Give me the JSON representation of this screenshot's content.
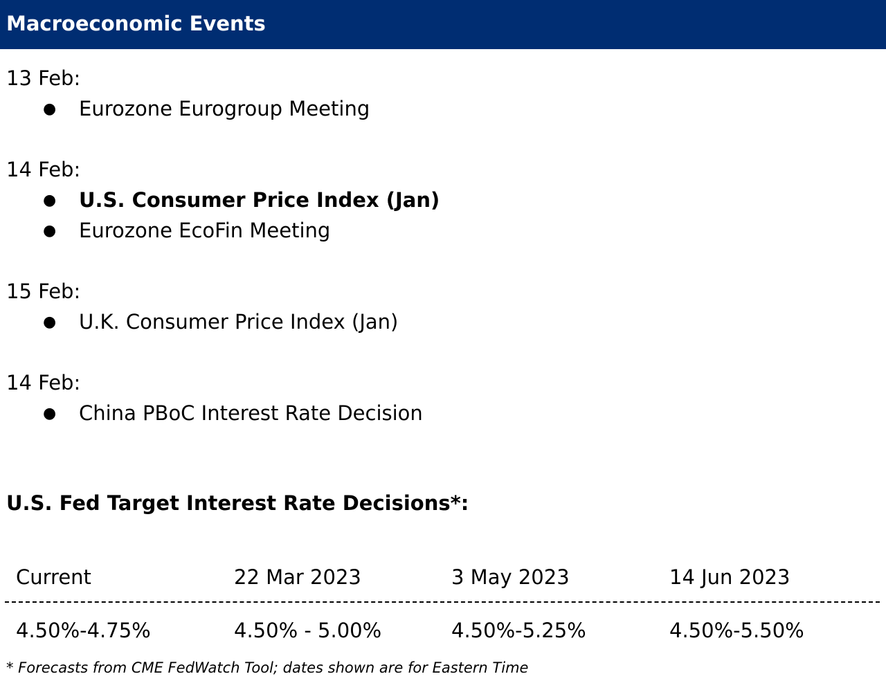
{
  "header": {
    "title": "Macroeconomic Events",
    "background_color": "#002d72"
  },
  "event_groups": [
    {
      "date": "13 Feb:",
      "events": [
        {
          "text": "Eurozone Eurogroup Meeting",
          "bold": false
        }
      ]
    },
    {
      "date": "14 Feb:",
      "events": [
        {
          "text": "U.S. Consumer Price Index (Jan)",
          "bold": true
        },
        {
          "text": "Eurozone EcoFin Meeting",
          "bold": false
        }
      ]
    },
    {
      "date": "15 Feb:",
      "events": [
        {
          "text": "U.K. Consumer Price Index (Jan)",
          "bold": false
        }
      ]
    },
    {
      "date": "14 Feb:",
      "events": [
        {
          "text": "China PBoC Interest Rate Decision",
          "bold": false
        }
      ]
    }
  ],
  "bullet_glyph": "●",
  "fed": {
    "title": "U.S. Fed Target Interest Rate Decisions*:",
    "columns": [
      "Current",
      "22 Mar 2023",
      "3 May 2023",
      "14 Jun 2023"
    ],
    "values": [
      "4.50%-4.75%",
      "4.50% - 5.00%",
      "4.50%-5.25%",
      "4.50%-5.50%"
    ]
  },
  "footnote": "* Forecasts from CME FedWatch Tool; dates shown are for Eastern Time"
}
